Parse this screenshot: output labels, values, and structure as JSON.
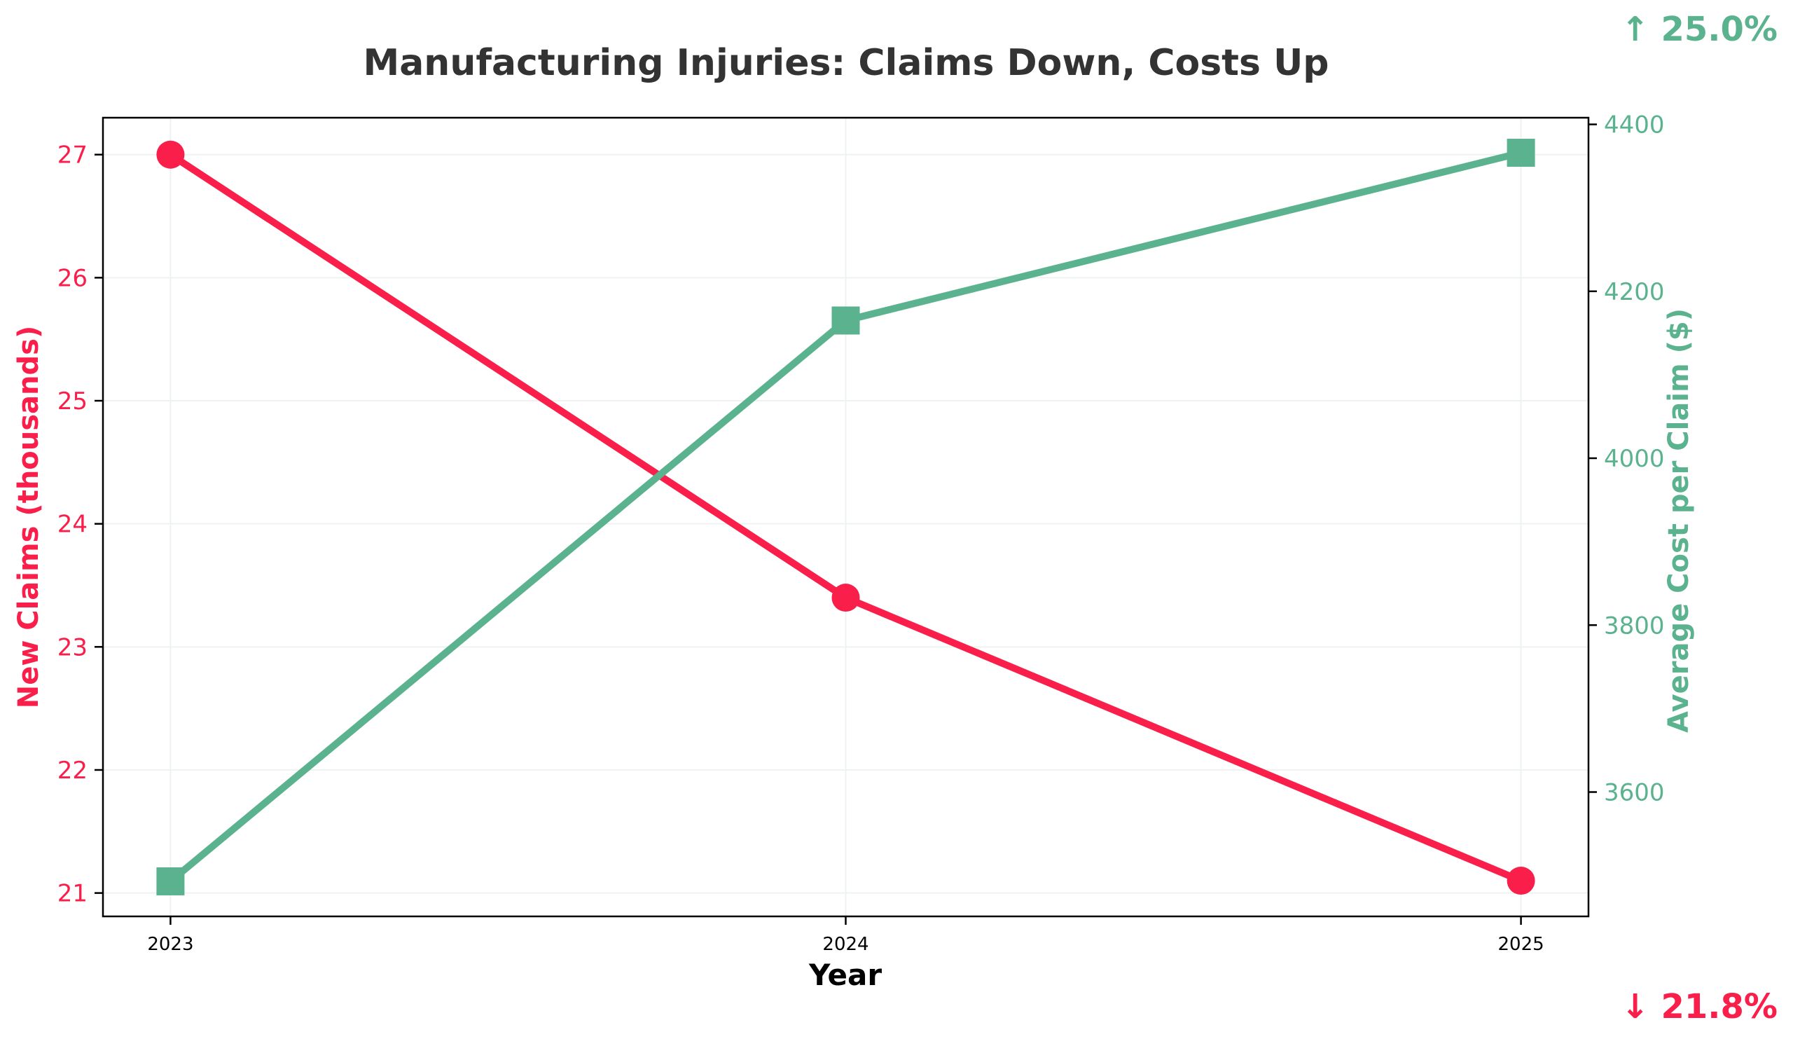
{
  "chart_data": {
    "type": "line",
    "title": "Manufacturing Injuries: Claims Down, Costs Up",
    "xlabel": "Year",
    "x": [
      2023,
      2024,
      2025
    ],
    "x_tick_labels": [
      "2023",
      "2024",
      "2025"
    ],
    "xlim": [
      2022.9,
      2025.1
    ],
    "grid": true,
    "series": [
      {
        "name": "New Claims (thousands)",
        "axis": "left",
        "color": "#f91f4a",
        "marker": "circle",
        "values": [
          27.0,
          23.4,
          21.1
        ]
      },
      {
        "name": "Average Cost per Claim ($)",
        "axis": "right",
        "color": "#5bb28f",
        "marker": "square",
        "values": [
          3493,
          4165,
          4366
        ]
      }
    ],
    "left_axis": {
      "label": "New Claims (thousands)",
      "ylim": [
        20.81,
        27.3
      ],
      "ticks": [
        21,
        22,
        23,
        24,
        25,
        26,
        27
      ]
    },
    "right_axis": {
      "label": "Average Cost per Claim ($)",
      "ylim": [
        3451,
        4408
      ],
      "ticks": [
        3600,
        3800,
        4000,
        4200,
        4400
      ]
    },
    "annotations": {
      "cost_change": "↑ 25.0%",
      "claims_change": "↓ 21.8%"
    }
  }
}
